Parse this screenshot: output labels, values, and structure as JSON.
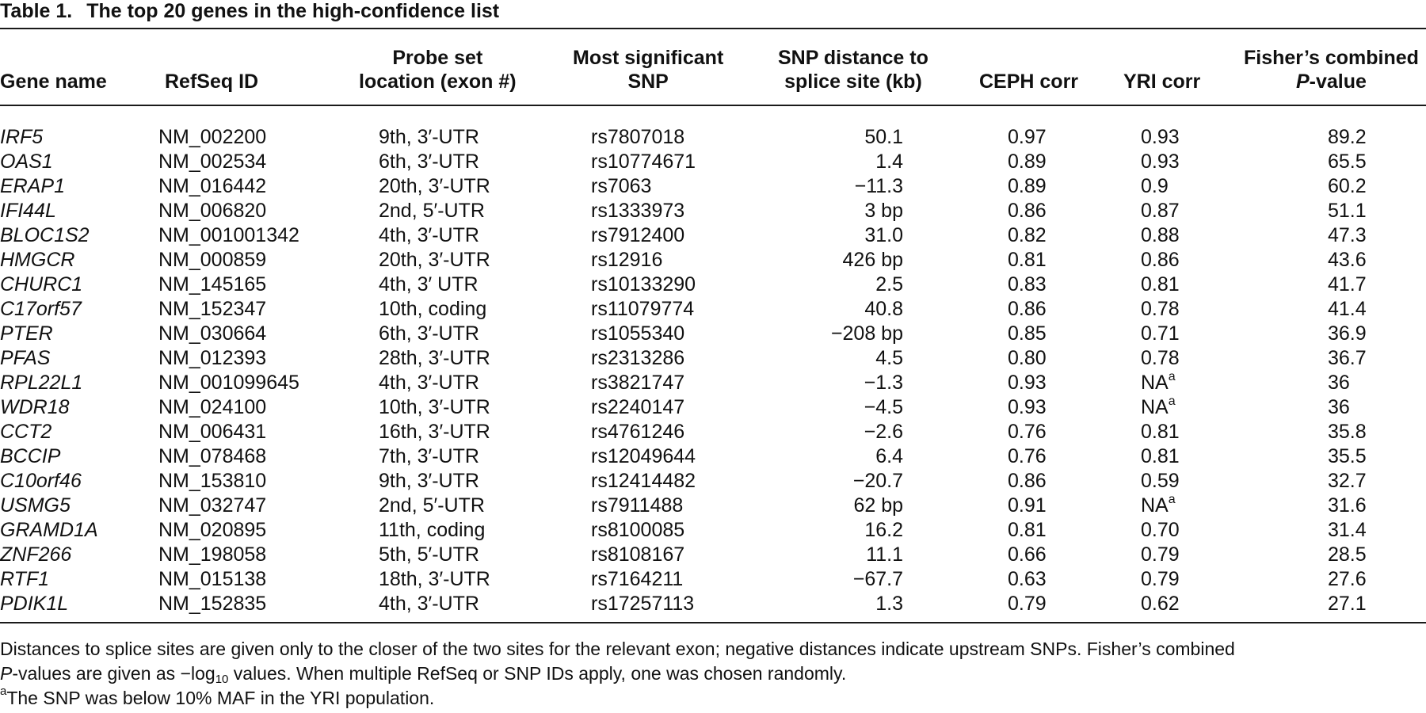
{
  "table": {
    "label": "Table 1.",
    "caption": "The top 20 genes in the high-confidence list",
    "headers": {
      "gene_name": "Gene name",
      "refseq_id": "RefSeq ID",
      "probe_line1": "Probe set",
      "probe_line2": "location (exon #)",
      "snp_line1": "Most significant",
      "snp_line2": "SNP",
      "dist_line1": "SNP distance to",
      "dist_line2": "splice site (kb)",
      "ceph": "CEPH corr",
      "yri": "YRI corr",
      "fisher_line1": "Fisher’s combined",
      "fisher_p": "P",
      "fisher_suffix": "-value"
    },
    "rows": [
      {
        "gene": "IRF5",
        "refseq": "NM_002200",
        "probe": "9th, 3′-UTR",
        "snp": "rs7807018",
        "dist": "50.1",
        "ceph": "0.97",
        "yri": "0.93",
        "yri_note": "",
        "fisher": "89.2"
      },
      {
        "gene": "OAS1",
        "refseq": "NM_002534",
        "probe": "6th, 3′-UTR",
        "snp": "rs10774671",
        "dist": "1.4",
        "ceph": "0.89",
        "yri": "0.93",
        "yri_note": "",
        "fisher": "65.5"
      },
      {
        "gene": "ERAP1",
        "refseq": "NM_016442",
        "probe": "20th, 3′-UTR",
        "snp": "rs7063",
        "dist": "−11.3",
        "ceph": "0.89",
        "yri": "0.9",
        "yri_note": "",
        "fisher": "60.2"
      },
      {
        "gene": "IFI44L",
        "refseq": "NM_006820",
        "probe": "2nd, 5′-UTR",
        "snp": "rs1333973",
        "dist": "3 bp",
        "ceph": "0.86",
        "yri": "0.87",
        "yri_note": "",
        "fisher": "51.1"
      },
      {
        "gene": "BLOC1S2",
        "refseq": "NM_001001342",
        "probe": "4th, 3′-UTR",
        "snp": "rs7912400",
        "dist": "31.0",
        "ceph": "0.82",
        "yri": "0.88",
        "yri_note": "",
        "fisher": "47.3"
      },
      {
        "gene": "HMGCR",
        "refseq": "NM_000859",
        "probe": "20th, 3′-UTR",
        "snp": "rs12916",
        "dist": "426 bp",
        "ceph": "0.81",
        "yri": "0.86",
        "yri_note": "",
        "fisher": "43.6"
      },
      {
        "gene": "CHURC1",
        "refseq": "NM_145165",
        "probe": "4th, 3′ UTR",
        "snp": "rs10133290",
        "dist": "2.5",
        "ceph": "0.83",
        "yri": "0.81",
        "yri_note": "",
        "fisher": "41.7"
      },
      {
        "gene": "C17orf57",
        "refseq": "NM_152347",
        "probe": "10th, coding",
        "snp": "rs11079774",
        "dist": "40.8",
        "ceph": "0.86",
        "yri": "0.78",
        "yri_note": "",
        "fisher": "41.4"
      },
      {
        "gene": "PTER",
        "refseq": "NM_030664",
        "probe": "6th, 3′-UTR",
        "snp": "rs1055340",
        "dist": "−208 bp",
        "ceph": "0.85",
        "yri": "0.71",
        "yri_note": "",
        "fisher": "36.9"
      },
      {
        "gene": "PFAS",
        "refseq": "NM_012393",
        "probe": "28th, 3′-UTR",
        "snp": "rs2313286",
        "dist": "4.5",
        "ceph": "0.80",
        "yri": "0.78",
        "yri_note": "",
        "fisher": "36.7"
      },
      {
        "gene": "RPL22L1",
        "refseq": "NM_001099645",
        "probe": "4th, 3′-UTR",
        "snp": "rs3821747",
        "dist": "−1.3",
        "ceph": "0.93",
        "yri": "NA",
        "yri_note": "a",
        "fisher": "36"
      },
      {
        "gene": "WDR18",
        "refseq": "NM_024100",
        "probe": "10th, 3′-UTR",
        "snp": "rs2240147",
        "dist": "−4.5",
        "ceph": "0.93",
        "yri": "NA",
        "yri_note": "a",
        "fisher": "36"
      },
      {
        "gene": "CCT2",
        "refseq": "NM_006431",
        "probe": "16th, 3′-UTR",
        "snp": "rs4761246",
        "dist": "−2.6",
        "ceph": "0.76",
        "yri": "0.81",
        "yri_note": "",
        "fisher": "35.8"
      },
      {
        "gene": "BCCIP",
        "refseq": "NM_078468",
        "probe": "7th, 3′-UTR",
        "snp": "rs12049644",
        "dist": "6.4",
        "ceph": "0.76",
        "yri": "0.81",
        "yri_note": "",
        "fisher": "35.5"
      },
      {
        "gene": "C10orf46",
        "refseq": "NM_153810",
        "probe": "9th, 3′-UTR",
        "snp": "rs12414482",
        "dist": "−20.7",
        "ceph": "0.86",
        "yri": "0.59",
        "yri_note": "",
        "fisher": "32.7"
      },
      {
        "gene": "USMG5",
        "refseq": "NM_032747",
        "probe": "2nd, 5′-UTR",
        "snp": "rs7911488",
        "dist": "62 bp",
        "ceph": "0.91",
        "yri": "NA",
        "yri_note": "a",
        "fisher": "31.6"
      },
      {
        "gene": "GRAMD1A",
        "refseq": "NM_020895",
        "probe": "11th, coding",
        "snp": "rs8100085",
        "dist": "16.2",
        "ceph": "0.81",
        "yri": "0.70",
        "yri_note": "",
        "fisher": "31.4"
      },
      {
        "gene": "ZNF266",
        "refseq": "NM_198058",
        "probe": "5th, 5′-UTR",
        "snp": "rs8108167",
        "dist": "11.1",
        "ceph": "0.66",
        "yri": "0.79",
        "yri_note": "",
        "fisher": "28.5"
      },
      {
        "gene": "RTF1",
        "refseq": "NM_015138",
        "probe": "18th, 3′-UTR",
        "snp": "rs7164211",
        "dist": "−67.7",
        "ceph": "0.63",
        "yri": "0.79",
        "yri_note": "",
        "fisher": "27.6"
      },
      {
        "gene": "PDIK1L",
        "refseq": "NM_152835",
        "probe": "4th, 3′-UTR",
        "snp": "rs17257113",
        "dist": "1.3",
        "ceph": "0.79",
        "yri": "0.62",
        "yri_note": "",
        "fisher": "27.1"
      }
    ],
    "footnotes": {
      "line1": "Distances to splice sites are given only to the closer of the two sites for the relevant exon; negative distances indicate upstream SNPs. Fisher’s combined",
      "line2_p": "P",
      "line2_a": "-values are given as −log",
      "line2_sub": "10",
      "line2_b": " values. When multiple RefSeq or SNP IDs apply, one was chosen randomly.",
      "line3_mark": "a",
      "line3": "The SNP was below 10% MAF in the YRI population."
    }
  }
}
